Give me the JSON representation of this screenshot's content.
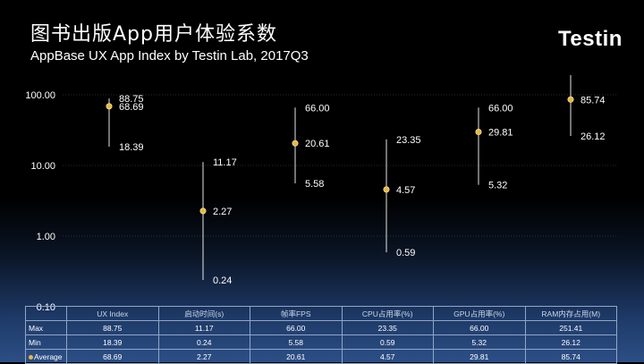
{
  "header": {
    "title": "图书出版App用户体验系数",
    "subtitle": "AppBase UX App Index by Testin Lab, 2017Q3",
    "logo_text": "Testin"
  },
  "colors": {
    "background_top": "#000000",
    "background_bottom": "#2c4f86",
    "marker": "#e8b93a",
    "range_line": "#ffffff",
    "gridline": "#4a5566",
    "table_border": "#8fa6c8"
  },
  "chart_data": {
    "type": "scatter",
    "y_scale": "log",
    "ylim": [
      0.1,
      100
    ],
    "y_ticks": [
      "100.00",
      "10.00",
      "1.00",
      "0.10"
    ],
    "categories": [
      "UX Index",
      "启动时间(s)",
      "帧率FPS",
      "CPU占用率(%)",
      "GPU占用率(%)",
      "RAM内存占用(M)"
    ],
    "max": [
      88.75,
      11.17,
      66.0,
      23.35,
      66.0,
      251.41
    ],
    "min": [
      18.39,
      0.24,
      5.58,
      0.59,
      5.32,
      26.12
    ],
    "average": [
      68.69,
      2.27,
      20.61,
      4.57,
      29.81,
      85.74
    ],
    "labels": [
      {
        "max": "88.75",
        "avg": "68.69",
        "min": "18.39"
      },
      {
        "max": "11.17",
        "avg": "2.27",
        "min": "0.24"
      },
      {
        "max": "66.00",
        "avg": "20.61",
        "min": "5.58"
      },
      {
        "max": "23.35",
        "avg": "4.57",
        "min": "0.59"
      },
      {
        "max": "66.00",
        "avg": "29.81",
        "min": "5.32"
      },
      {
        "max": "",
        "avg": "85.74",
        "min": "26.12"
      }
    ],
    "grid": true,
    "legend": "none"
  },
  "table": {
    "headers": [
      "UX Index",
      "启动时间(s)",
      "帧率FPS",
      "CPU占用率(%)",
      "GPU占用率(%)",
      "RAM内存占用(M)"
    ],
    "rows": [
      {
        "label": "Max",
        "marker": false,
        "values": [
          "88.75",
          "11.17",
          "66.00",
          "23.35",
          "66.00",
          "251.41"
        ]
      },
      {
        "label": "Min",
        "marker": false,
        "values": [
          "18.39",
          "0.24",
          "5.58",
          "0.59",
          "5.32",
          "26.12"
        ]
      },
      {
        "label": "Average",
        "marker": true,
        "values": [
          "68.69",
          "2.27",
          "20.61",
          "4.57",
          "29.81",
          "85.74"
        ]
      }
    ]
  }
}
